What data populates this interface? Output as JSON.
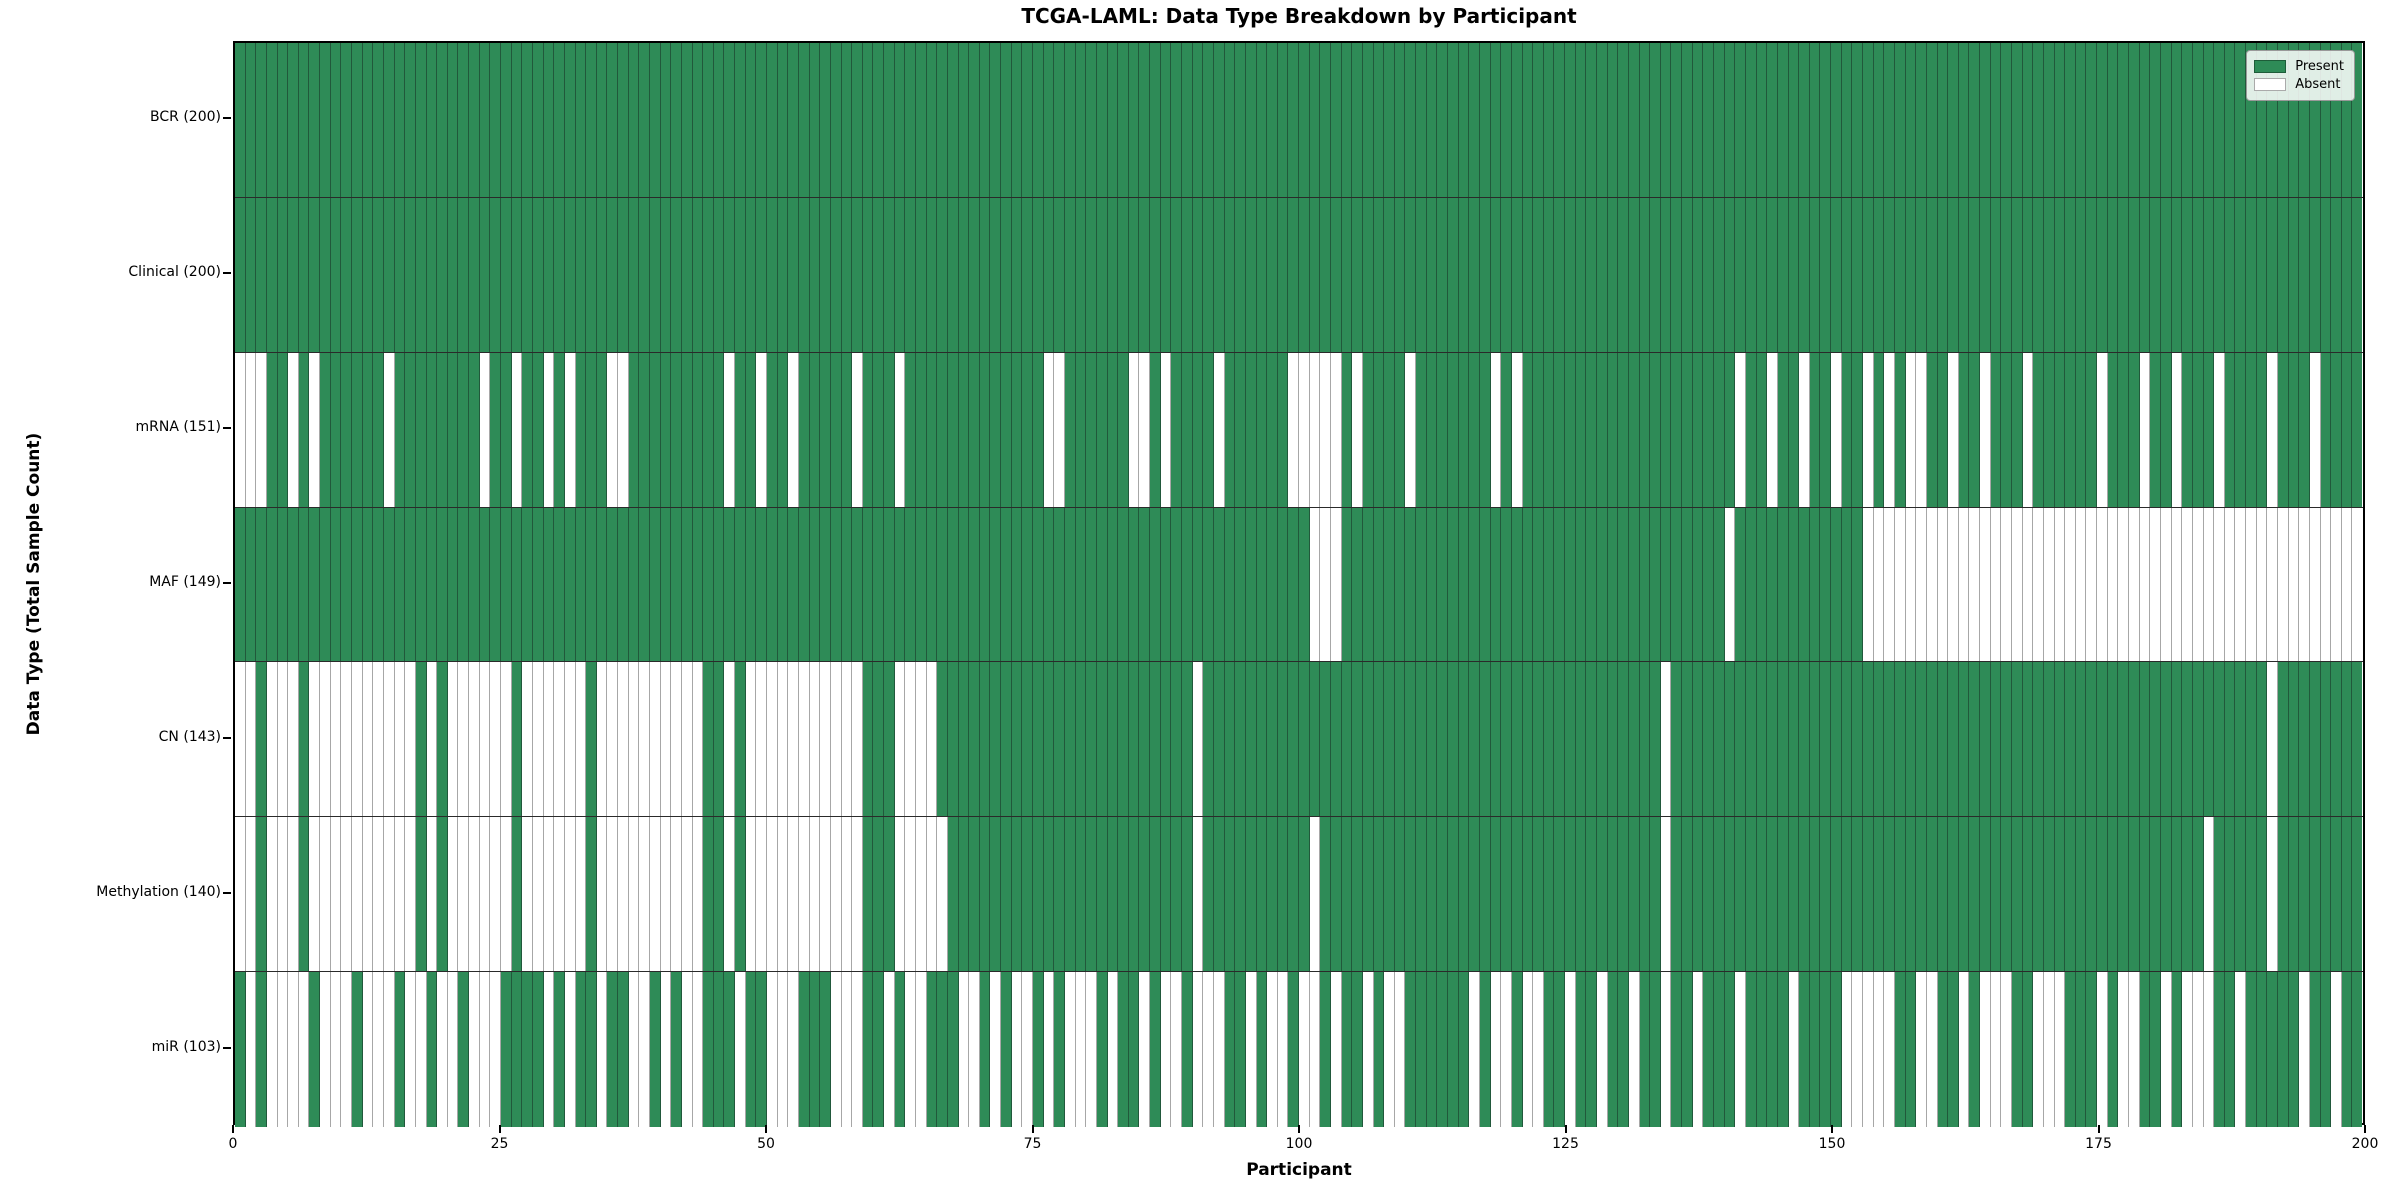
{
  "title": "TCGA-LAML: Data Type Breakdown by Participant",
  "x_axis": {
    "label": "Participant",
    "ticks": [
      "0",
      "25",
      "50",
      "75",
      "100",
      "125",
      "150",
      "175",
      "200"
    ],
    "max": 200
  },
  "y_axis": {
    "label": "Data Type (Total Sample Count)"
  },
  "legend": {
    "present_label": "Present",
    "absent_label": "Absent"
  },
  "colors": {
    "present": "#2e8b57",
    "absent": "#ffffff",
    "spine": "#000000",
    "grid_edge": "rgba(95,95,95,0.55)"
  },
  "chart_data": {
    "type": "heatmap",
    "title": "TCGA-LAML: Data Type Breakdown by Participant",
    "xlabel": "Participant",
    "ylabel": "Data Type (Total Sample Count)",
    "x_range": [
      0,
      200
    ],
    "n_participants": 200,
    "legend_position": "upper right",
    "value_encoding": {
      "present": "#2e8b57",
      "absent": "white"
    },
    "rows": [
      {
        "label": "BCR (200)",
        "name": "BCR",
        "present_count": 200,
        "absent_count": 0,
        "absent_indices": []
      },
      {
        "label": "Clinical (200)",
        "name": "Clinical",
        "present_count": 200,
        "absent_count": 0,
        "absent_indices": []
      },
      {
        "label": "mRNA (151)",
        "name": "mRNA",
        "present_count": 151,
        "absent_count": 49,
        "absent_indices": [
          0,
          1,
          2,
          5,
          7,
          14,
          23,
          26,
          29,
          31,
          35,
          36,
          46,
          49,
          52,
          58,
          62,
          76,
          77,
          84,
          85,
          87,
          92,
          99,
          100,
          101,
          102,
          103,
          105,
          110,
          118,
          120,
          141,
          144,
          147,
          150,
          153,
          155,
          157,
          158,
          161,
          164,
          168,
          175,
          179,
          182,
          186,
          191,
          195
        ]
      },
      {
        "label": "MAF (149)",
        "name": "MAF",
        "present_count": 149,
        "absent_count": 51,
        "absent_indices": [
          101,
          102,
          103,
          140,
          153,
          154,
          155,
          156,
          157,
          158,
          159,
          160,
          161,
          162,
          163,
          164,
          165,
          166,
          167,
          168,
          169,
          170,
          171,
          172,
          173,
          174,
          175,
          176,
          177,
          178,
          179,
          180,
          181,
          182,
          183,
          184,
          185,
          186,
          187,
          188,
          189,
          190,
          191,
          192,
          193,
          194,
          195,
          196,
          197,
          198,
          199
        ]
      },
      {
        "label": "CN (143)",
        "name": "CN",
        "present_count": 143,
        "absent_count": 57,
        "absent_indices": [
          0,
          1,
          3,
          4,
          5,
          7,
          8,
          9,
          10,
          11,
          12,
          13,
          14,
          15,
          16,
          18,
          20,
          21,
          22,
          23,
          24,
          25,
          27,
          28,
          29,
          30,
          31,
          32,
          34,
          35,
          36,
          37,
          38,
          39,
          40,
          41,
          42,
          43,
          46,
          48,
          49,
          50,
          51,
          52,
          53,
          54,
          55,
          56,
          57,
          58,
          62,
          63,
          64,
          65,
          90,
          134,
          191
        ]
      },
      {
        "label": "Methylation (140)",
        "name": "Methylation",
        "present_count": 140,
        "absent_count": 60,
        "absent_indices": [
          0,
          1,
          3,
          4,
          5,
          7,
          8,
          9,
          10,
          11,
          12,
          13,
          14,
          15,
          16,
          18,
          20,
          21,
          22,
          23,
          24,
          25,
          27,
          28,
          29,
          30,
          31,
          32,
          34,
          35,
          36,
          37,
          38,
          39,
          40,
          41,
          42,
          43,
          46,
          48,
          49,
          50,
          51,
          52,
          53,
          54,
          55,
          56,
          57,
          58,
          62,
          63,
          64,
          65,
          66,
          90,
          101,
          134,
          185,
          191
        ]
      },
      {
        "label": "miR (103)",
        "name": "miR",
        "present_count": 103,
        "absent_count": 97,
        "absent_indices": [
          1,
          3,
          4,
          5,
          6,
          8,
          9,
          10,
          12,
          13,
          14,
          16,
          17,
          19,
          20,
          22,
          23,
          24,
          29,
          31,
          34,
          37,
          38,
          40,
          42,
          43,
          47,
          50,
          51,
          52,
          56,
          57,
          58,
          61,
          63,
          64,
          68,
          69,
          71,
          73,
          74,
          76,
          78,
          79,
          80,
          82,
          85,
          87,
          88,
          90,
          91,
          92,
          95,
          97,
          98,
          100,
          101,
          103,
          106,
          108,
          109,
          116,
          118,
          119,
          121,
          122,
          125,
          128,
          131,
          134,
          137,
          141,
          146,
          151,
          152,
          153,
          154,
          155,
          158,
          159,
          162,
          164,
          165,
          166,
          169,
          170,
          171,
          175,
          177,
          178,
          181,
          183,
          184,
          185,
          188,
          194,
          197
        ]
      }
    ]
  }
}
